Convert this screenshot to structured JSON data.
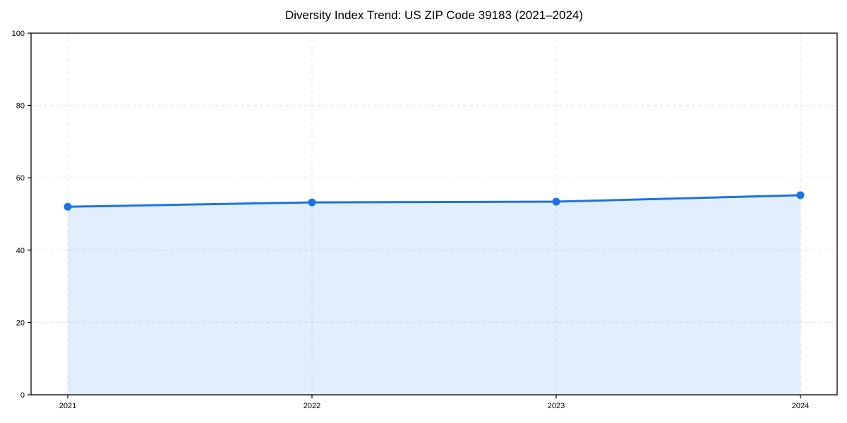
{
  "chart_data": {
    "type": "area",
    "title": "Diversity Index Trend: US ZIP Code 39183 (2021–2024)",
    "series_name": "Diversity Index",
    "categories": [
      "2021",
      "2022",
      "2023",
      "2024"
    ],
    "values": [
      52.0,
      53.2,
      53.4,
      55.2
    ],
    "xlabel": "",
    "ylabel": "",
    "ylim": [
      0,
      100
    ],
    "yticks": [
      0,
      20,
      40,
      60,
      80,
      100
    ],
    "grid": true,
    "grid_style": "dashed",
    "legend_position": "none",
    "line_color": "#1a73e8",
    "marker": "circle",
    "marker_radius": 5.5,
    "line_width": 3,
    "fill_opacity": 0.12,
    "grid_color": "#e5e5e5",
    "axis_color": "#000000",
    "text_color": "#000000",
    "background_color": "#ffffff"
  }
}
